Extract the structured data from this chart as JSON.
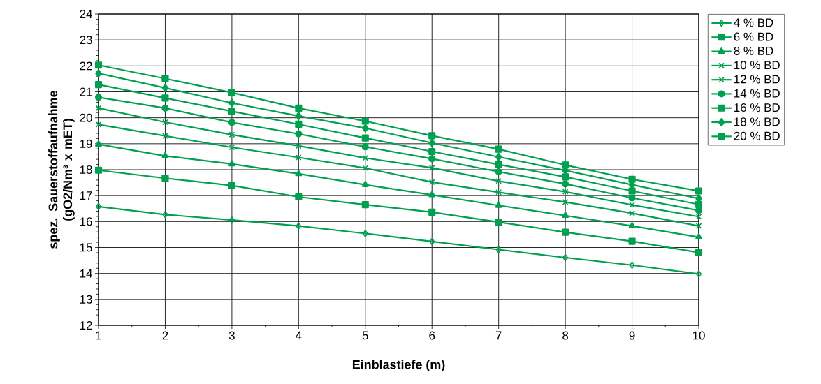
{
  "chart_data": {
    "type": "line",
    "xlabel": "Einblastiefe (m)",
    "ylabel": "spez. Sauerstoffaufnahme (gO2/Nm³ x mET)",
    "x": [
      1,
      2,
      3,
      4,
      5,
      6,
      7,
      8,
      9,
      10
    ],
    "xlim": [
      1,
      10
    ],
    "xticks": [
      1,
      2,
      3,
      4,
      5,
      6,
      7,
      8,
      9,
      10
    ],
    "ylim": [
      12,
      24
    ],
    "yticks": [
      12,
      13,
      14,
      15,
      16,
      17,
      18,
      19,
      20,
      21,
      22,
      23,
      24
    ],
    "grid": true,
    "legend": "top right",
    "line_style": "solid",
    "series": [
      {
        "name": "4 % BD",
        "color": "#00a050",
        "marker": "diamond-open",
        "values": [
          16.58,
          16.27,
          16.06,
          15.83,
          15.54,
          15.23,
          14.92,
          14.61,
          14.32,
          13.98
        ]
      },
      {
        "name": "6 % BD",
        "color": "#00a050",
        "marker": "square",
        "values": [
          17.98,
          17.67,
          17.39,
          16.95,
          16.65,
          16.36,
          15.98,
          15.59,
          15.24,
          14.81
        ]
      },
      {
        "name": "8 % BD",
        "color": "#00a050",
        "marker": "triangle",
        "values": [
          18.98,
          18.53,
          18.22,
          17.84,
          17.42,
          17.03,
          16.62,
          16.23,
          15.83,
          15.4
        ]
      },
      {
        "name": "10 % BD",
        "color": "#00a050",
        "marker": "cross",
        "values": [
          20.37,
          19.83,
          19.35,
          18.92,
          18.45,
          18.07,
          17.56,
          17.15,
          16.64,
          16.19
        ]
      },
      {
        "name": "12 % BD",
        "color": "#00a050",
        "marker": "cross",
        "values": [
          19.74,
          19.3,
          18.86,
          18.47,
          18.06,
          17.52,
          17.13,
          16.75,
          16.32,
          15.83
        ]
      },
      {
        "name": "14 % BD",
        "color": "#00a050",
        "marker": "circle",
        "values": [
          20.79,
          20.37,
          19.82,
          19.38,
          18.88,
          18.42,
          17.92,
          17.45,
          16.91,
          16.43
        ]
      },
      {
        "name": "16 % BD",
        "color": "#00a050",
        "marker": "square",
        "values": [
          21.28,
          20.76,
          20.25,
          19.75,
          19.22,
          18.7,
          18.2,
          17.72,
          17.18,
          16.66
        ]
      },
      {
        "name": "18 % BD",
        "color": "#00a050",
        "marker": "diamond",
        "values": [
          21.71,
          21.15,
          20.57,
          20.07,
          19.6,
          19.03,
          18.49,
          17.97,
          17.42,
          16.89
        ]
      },
      {
        "name": "20 % BD",
        "color": "#00a050",
        "marker": "square",
        "values": [
          22.03,
          21.51,
          20.97,
          20.37,
          19.87,
          19.31,
          18.79,
          18.18,
          17.63,
          17.18
        ]
      }
    ]
  }
}
